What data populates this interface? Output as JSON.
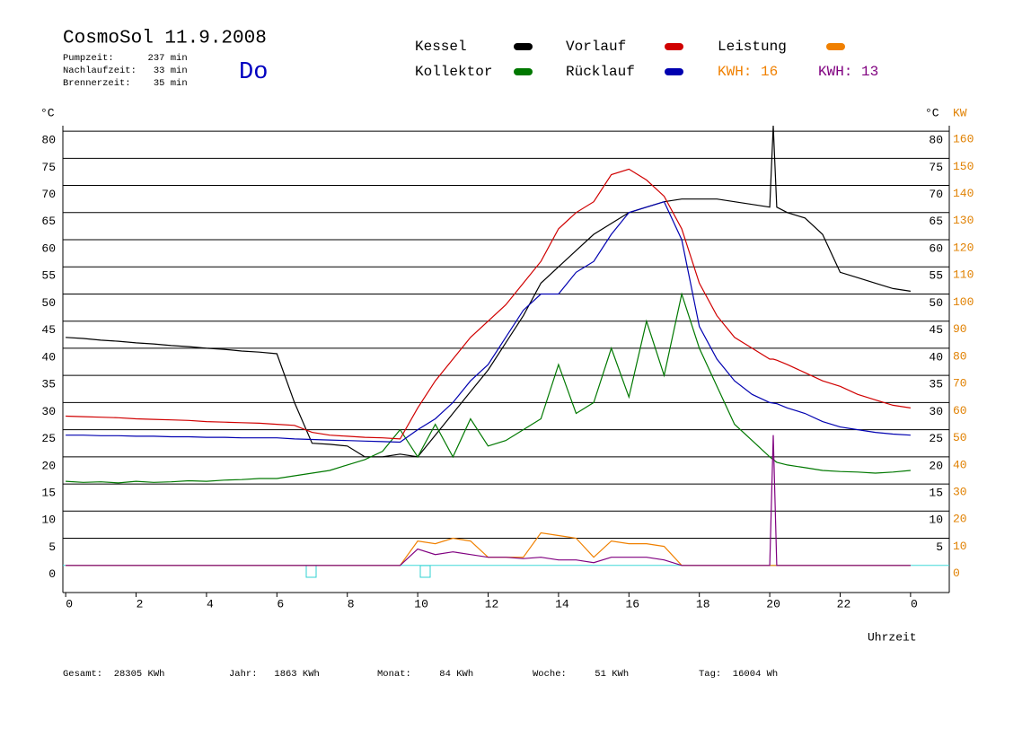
{
  "header": {
    "title": "CosmoSol 11.9.2008",
    "info": [
      "Pumpzeit:      237 min",
      "Nachlaufzeit:   33 min",
      "Brennerzeit:    35 min"
    ],
    "day": "Do"
  },
  "chart_data": {
    "type": "line",
    "x": [
      0,
      0.5,
      1,
      1.5,
      2,
      2.5,
      3,
      3.5,
      4,
      4.5,
      5,
      5.5,
      6,
      6.5,
      7,
      7.5,
      8,
      8.5,
      9,
      9.5,
      10,
      10.5,
      11,
      11.5,
      12,
      12.5,
      13,
      13.5,
      14,
      14.5,
      15,
      15.5,
      16,
      16.5,
      17,
      17.5,
      18,
      18.5,
      19,
      19.5,
      20,
      20.1,
      20.2,
      20.5,
      21,
      21.5,
      22,
      22.5,
      23,
      23.5,
      24
    ],
    "series": [
      {
        "name": "Kessel",
        "color": "#000000",
        "values": [
          42,
          41.8,
          41.5,
          41.3,
          41,
          40.8,
          40.5,
          40.3,
          40,
          39.8,
          39.5,
          39.3,
          39,
          30,
          22.5,
          22.3,
          22,
          20,
          20,
          20.5,
          20,
          24,
          28,
          32,
          36,
          41,
          46,
          52,
          55,
          58,
          61,
          63,
          65,
          66,
          67,
          67.5,
          67.5,
          67.5,
          67,
          66.5,
          66,
          81,
          66,
          65,
          64,
          61,
          54,
          53,
          52,
          51,
          50.5
        ]
      },
      {
        "name": "Kollektor",
        "color": "#007800",
        "values": [
          15.5,
          15.3,
          15.4,
          15.2,
          15.5,
          15.3,
          15.4,
          15.6,
          15.5,
          15.7,
          15.8,
          16,
          16,
          16.5,
          17,
          17.5,
          18.5,
          19.5,
          21,
          25,
          20,
          26,
          20,
          27,
          22,
          23,
          25,
          27,
          37,
          28,
          30,
          40,
          31,
          45,
          35,
          50,
          40,
          33,
          26,
          23,
          20,
          19.5,
          19,
          18.5,
          18,
          17.5,
          17.3,
          17.2,
          17,
          17.2,
          17.5
        ]
      },
      {
        "name": "Vorlauf",
        "color": "#d00000",
        "values": [
          27.5,
          27.4,
          27.3,
          27.2,
          27,
          26.9,
          26.8,
          26.7,
          26.5,
          26.4,
          26.3,
          26.2,
          26,
          25.8,
          24.5,
          24,
          23.8,
          23.6,
          23.5,
          23.3,
          29,
          34,
          38,
          42,
          45,
          48,
          52,
          56,
          62,
          65,
          67,
          72,
          73,
          71,
          68,
          62,
          52,
          46,
          42,
          40,
          38,
          38,
          37.8,
          37,
          35.5,
          34,
          33,
          31.5,
          30.5,
          29.5,
          29
        ]
      },
      {
        "name": "Rücklauf",
        "color": "#0000b0",
        "values": [
          24,
          24,
          23.9,
          23.9,
          23.8,
          23.8,
          23.7,
          23.7,
          23.6,
          23.6,
          23.5,
          23.5,
          23.5,
          23.3,
          23.2,
          23.1,
          23,
          22.9,
          22.8,
          22.7,
          25,
          27,
          30,
          34,
          37,
          42,
          47,
          50,
          50,
          54,
          56,
          61,
          65,
          66,
          67,
          60,
          44,
          38,
          34,
          31.5,
          30,
          29.9,
          29.8,
          29,
          28,
          26.5,
          25.5,
          25,
          24.5,
          24.2,
          24
        ]
      },
      {
        "name": "Leistung",
        "color": "#f08000",
        "axis": "y2",
        "values": [
          0,
          0,
          0,
          0,
          0,
          0,
          0,
          0,
          0,
          0,
          0,
          0,
          0,
          0,
          0,
          0,
          0,
          0,
          0,
          0,
          9,
          8,
          10,
          9,
          3,
          3,
          3,
          12,
          11,
          10,
          3,
          9,
          8,
          8,
          7,
          0,
          0,
          0,
          0,
          0,
          0,
          0,
          0,
          0,
          0,
          0,
          0,
          0,
          0,
          0,
          0
        ]
      },
      {
        "color": "#800080",
        "axis": "y2",
        "values": [
          0,
          0,
          0,
          0,
          0,
          0,
          0,
          0,
          0,
          0,
          0,
          0,
          0,
          0,
          0,
          0,
          0,
          0,
          0,
          0,
          6,
          4,
          5,
          4,
          3,
          3,
          2.5,
          3,
          2,
          2,
          1,
          3,
          3,
          3,
          2,
          0,
          0,
          0,
          0,
          0,
          0,
          48,
          0,
          0,
          0,
          0,
          0,
          0,
          0,
          0,
          0
        ]
      }
    ],
    "kwh_labels": [
      {
        "text": "KWH: 16",
        "color": "#f08000"
      },
      {
        "text": "KWH: 13",
        "color": "#800080"
      }
    ],
    "xlim": [
      -0.08,
      25.1
    ],
    "xticks": [
      0,
      2,
      4,
      6,
      8,
      10,
      12,
      14,
      16,
      18,
      20,
      22,
      {
        "value": 24,
        "label": "0"
      }
    ],
    "ylim": [
      -5,
      82
    ],
    "yticks": [
      0,
      5,
      10,
      15,
      20,
      25,
      30,
      35,
      40,
      45,
      50,
      55,
      60,
      65,
      70,
      75,
      80
    ],
    "y_right_ticks": [
      5,
      10,
      15,
      20,
      25,
      30,
      35,
      40,
      45,
      50,
      55,
      60,
      65,
      70,
      75,
      80
    ],
    "y2lim": [
      -10,
      164
    ],
    "y2ticks": [
      0,
      10,
      20,
      30,
      40,
      50,
      60,
      70,
      80,
      90,
      100,
      110,
      120,
      130,
      140,
      150,
      160
    ],
    "y_label": "°C",
    "y_right_label": "°C",
    "y2_label": "KW",
    "x_label": "Uhrzeit",
    "grid": true
  },
  "footer": [
    "Gesamt:  28305 KWh",
    "Jahr:   1863 KWh",
    "Monat:     84 KWh",
    "Woche:     51 KWh",
    "Tag:  16004 Wh"
  ]
}
